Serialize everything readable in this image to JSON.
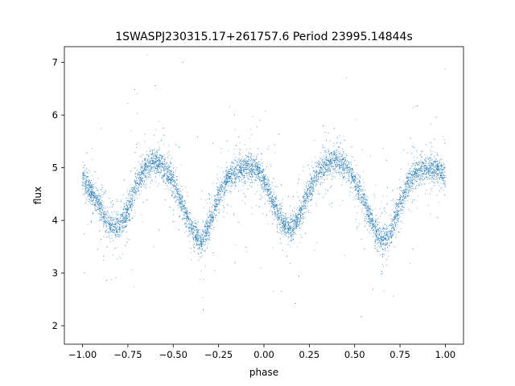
{
  "chart_data": {
    "type": "scatter",
    "title": "1SWASPJ230315.17+261757.6 Period 23995.14844s",
    "xlabel": "phase",
    "ylabel": "flux",
    "xlim": [
      -1.1,
      1.1
    ],
    "ylim": [
      1.65,
      7.3
    ],
    "xticks": [
      -1.0,
      -0.75,
      -0.5,
      -0.25,
      0.0,
      0.25,
      0.5,
      0.75,
      1.0
    ],
    "xtick_labels": [
      "−1.00",
      "−0.75",
      "−0.50",
      "−0.25",
      "0.00",
      "0.25",
      "0.50",
      "0.75",
      "1.00"
    ],
    "yticks": [
      2,
      3,
      4,
      5,
      6,
      7
    ],
    "ytick_labels": [
      "2",
      "3",
      "4",
      "5",
      "6",
      "7"
    ],
    "grid": false,
    "marker_color": "#1f77b4",
    "series": [
      {
        "phase": [
          -1.0,
          -0.95,
          -0.9,
          -0.85,
          -0.8,
          -0.75,
          -0.7,
          -0.65,
          -0.6,
          -0.55,
          -0.5,
          -0.45,
          -0.4,
          -0.35,
          -0.3,
          -0.25,
          -0.2,
          -0.15,
          -0.1,
          -0.05,
          0.0,
          0.05,
          0.1,
          0.15,
          0.2,
          0.25,
          0.3,
          0.35,
          0.4,
          0.45,
          0.5,
          0.55,
          0.6,
          0.65,
          0.7,
          0.75,
          0.8,
          0.85,
          0.9,
          0.95,
          1.0
        ],
        "flux": [
          4.78,
          4.55,
          4.25,
          3.9,
          3.85,
          4.2,
          4.7,
          5.02,
          5.15,
          5.0,
          4.7,
          4.3,
          3.85,
          3.6,
          3.9,
          4.45,
          4.8,
          4.95,
          5.0,
          5.0,
          4.75,
          4.35,
          3.95,
          3.8,
          4.1,
          4.6,
          4.92,
          5.08,
          5.15,
          5.02,
          4.75,
          4.35,
          3.9,
          3.6,
          3.75,
          4.3,
          4.75,
          4.95,
          5.0,
          5.0,
          4.85
        ]
      }
    ]
  }
}
